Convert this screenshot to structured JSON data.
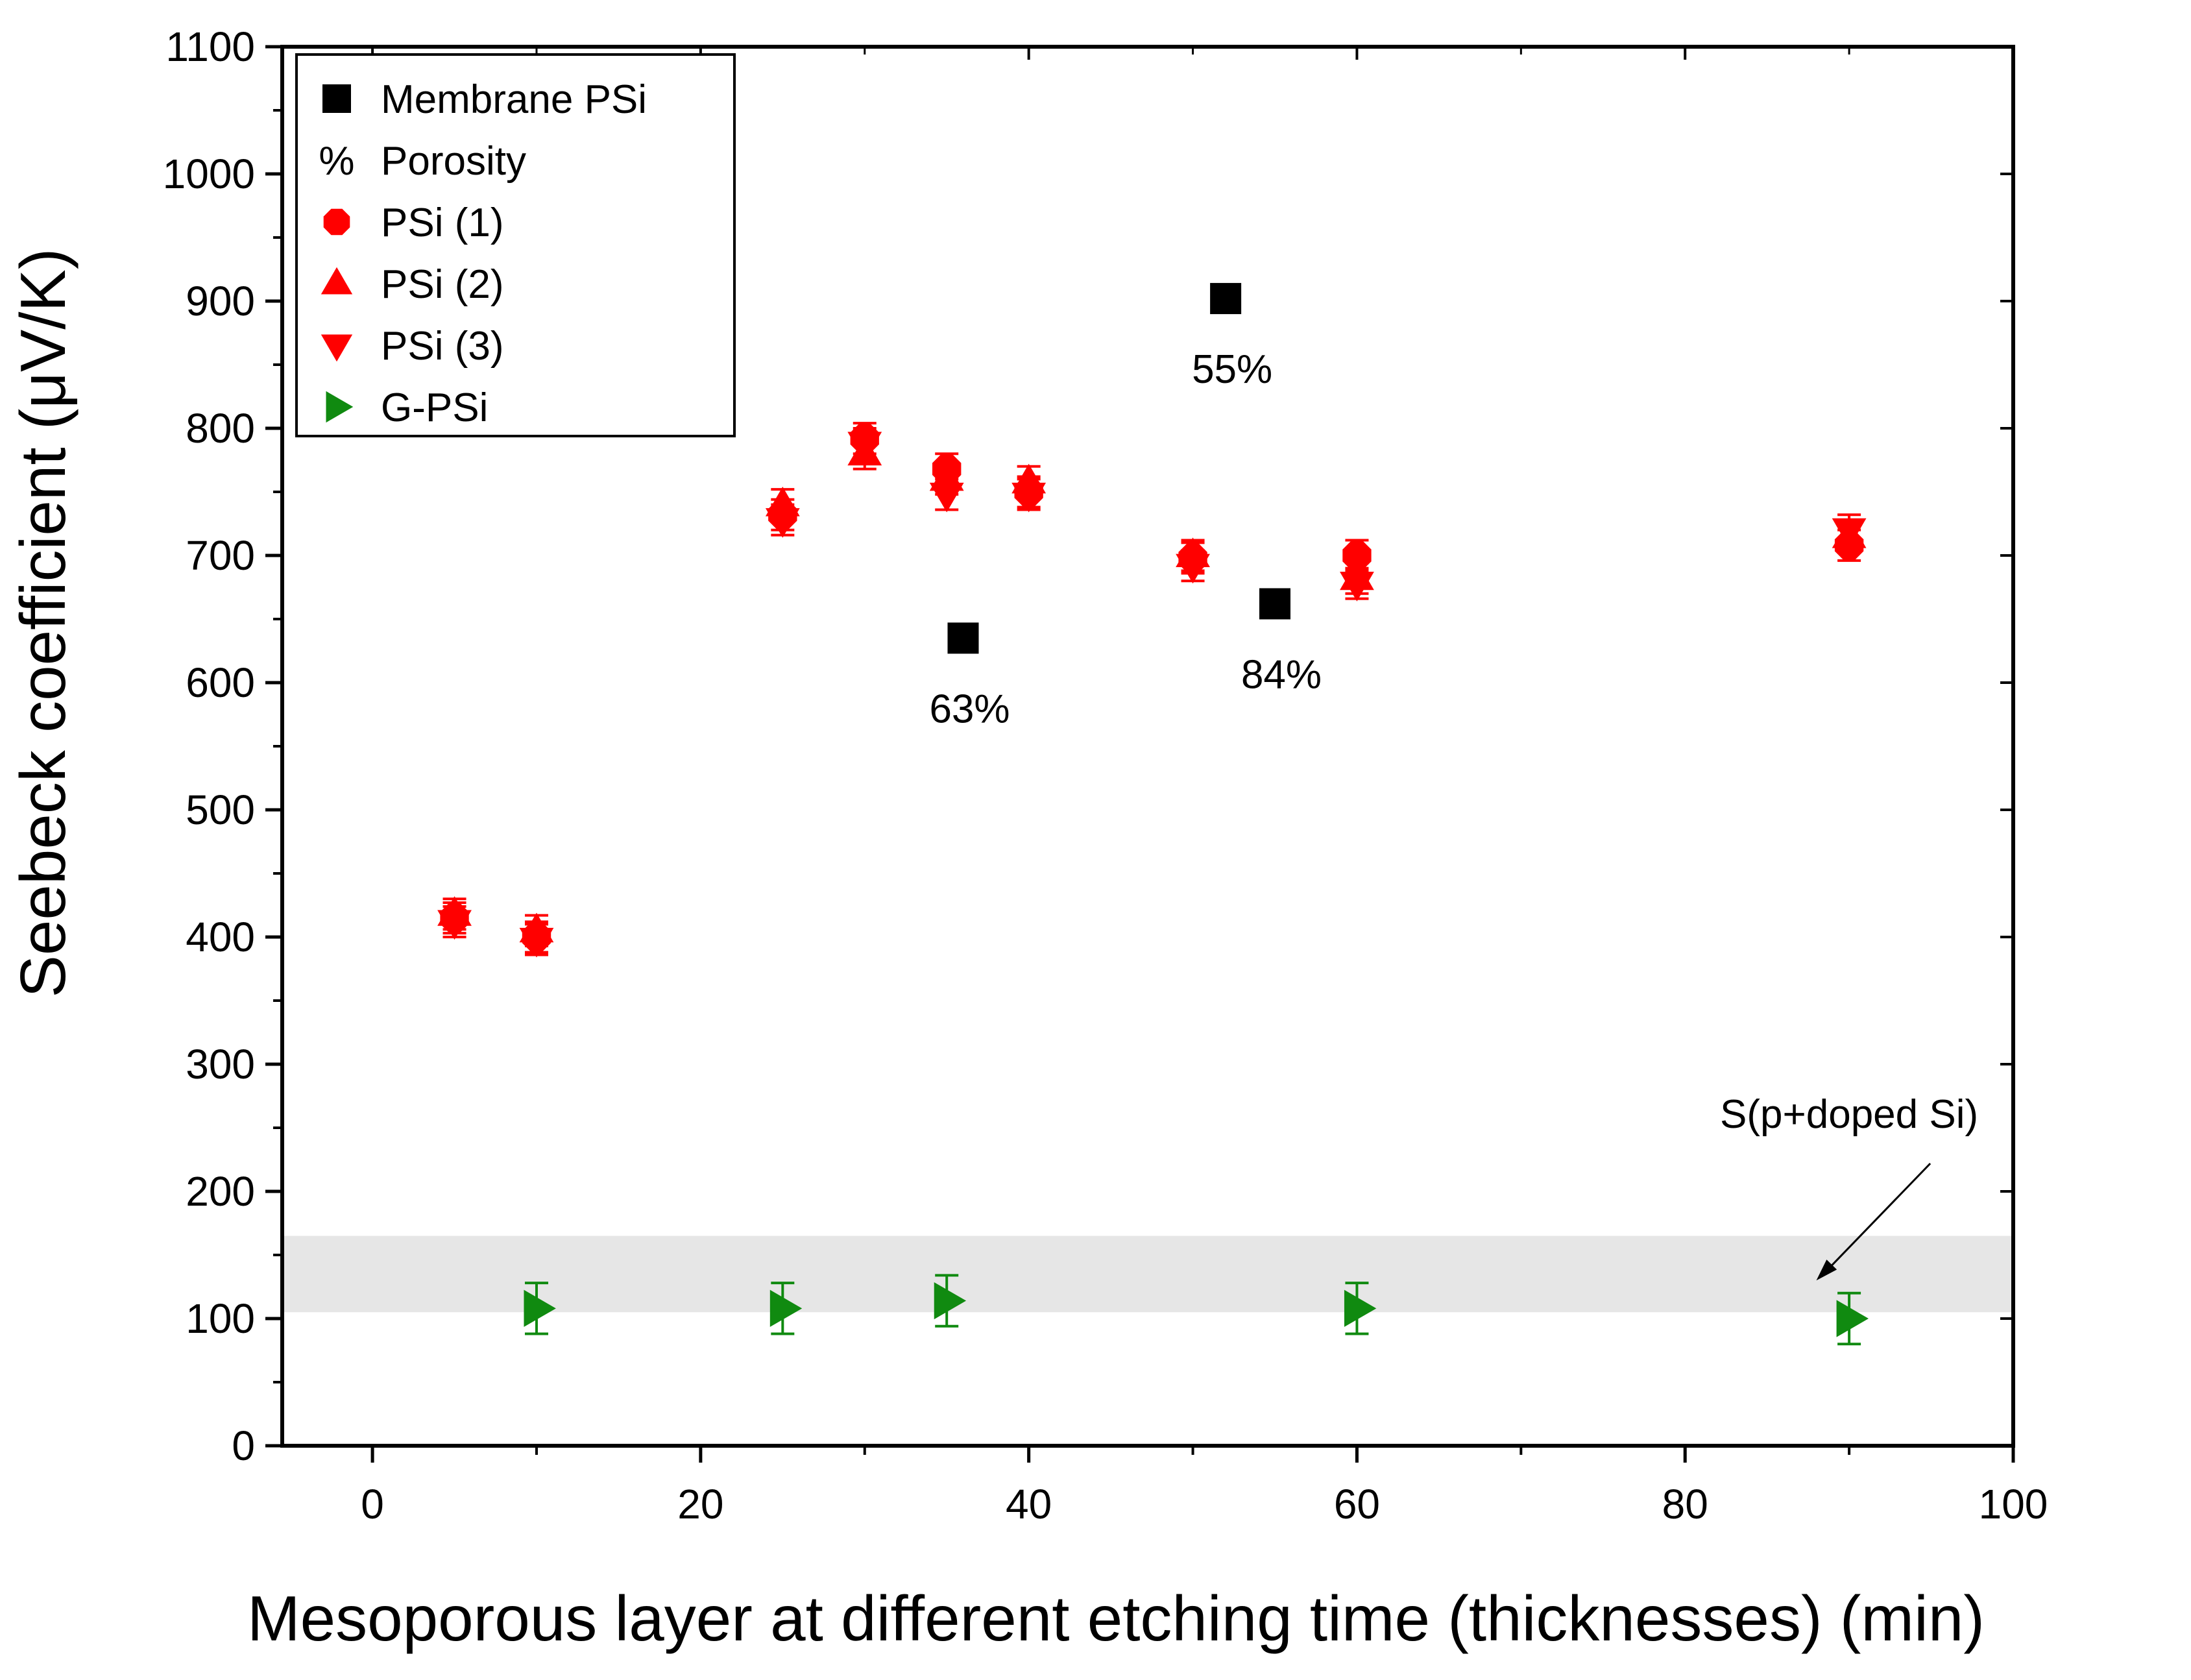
{
  "chart_data": {
    "type": "scatter",
    "title": "",
    "xlabel": "Mesoporous layer at different etching time (thicknesses) (min)",
    "ylabel": "Seebeck coefficient (μV/K)",
    "xlim": [
      -5.5,
      100
    ],
    "ylim": [
      0,
      1100
    ],
    "xticks": [
      0,
      20,
      40,
      60,
      80,
      100
    ],
    "yticks": [
      0,
      100,
      200,
      300,
      400,
      500,
      600,
      700,
      800,
      900,
      1000,
      1100
    ],
    "grid": false,
    "legend_position": "top-left",
    "colors": {
      "black": "#000000",
      "red": "#ff0000",
      "green": "#108a10",
      "band": "#e6e6e6",
      "frame": "#000000"
    },
    "band": {
      "label": "S(p+doped Si)",
      "y_range": [
        105,
        165
      ],
      "arrow_to": [
        88,
        130
      ],
      "label_at": [
        90,
        250
      ]
    },
    "legend": [
      {
        "symbol": "square",
        "label": "Membrane PSi"
      },
      {
        "symbol": "percent",
        "glyph": "%",
        "label": "Porosity"
      },
      {
        "symbol": "octagon",
        "label": "PSi (1)"
      },
      {
        "symbol": "triangle-up",
        "label": "PSi (2)"
      },
      {
        "symbol": "triangle-down",
        "label": "PSi (3)"
      },
      {
        "symbol": "triangle-right",
        "label": "G-PSi"
      }
    ],
    "series": [
      {
        "name": "Membrane PSi",
        "marker": "square",
        "color": "#000000",
        "points": [
          {
            "x": 36,
            "y": 635,
            "label": "63%"
          },
          {
            "x": 52,
            "y": 902,
            "label": "55%"
          },
          {
            "x": 55,
            "y": 662,
            "label": "84%"
          }
        ]
      },
      {
        "name": "PSi (1)",
        "marker": "octagon",
        "color": "#ff0000",
        "points": [
          {
            "x": 5,
            "y": 415,
            "err": 12
          },
          {
            "x": 10,
            "y": 400,
            "err": 12
          },
          {
            "x": 25,
            "y": 732,
            "err": 12
          },
          {
            "x": 30,
            "y": 792,
            "err": 12
          },
          {
            "x": 35,
            "y": 768,
            "err": 12
          },
          {
            "x": 40,
            "y": 750,
            "err": 12
          },
          {
            "x": 50,
            "y": 698,
            "err": 12
          },
          {
            "x": 60,
            "y": 700,
            "err": 12
          },
          {
            "x": 90,
            "y": 708,
            "err": 12
          }
        ]
      },
      {
        "name": "PSi (2)",
        "marker": "triangle-up",
        "color": "#ff0000",
        "points": [
          {
            "x": 5,
            "y": 418,
            "err": 12
          },
          {
            "x": 10,
            "y": 405,
            "err": 12
          },
          {
            "x": 25,
            "y": 740,
            "err": 12
          },
          {
            "x": 30,
            "y": 780,
            "err": 12
          },
          {
            "x": 35,
            "y": 760,
            "err": 12
          },
          {
            "x": 40,
            "y": 758,
            "err": 12
          },
          {
            "x": 50,
            "y": 700,
            "err": 12
          },
          {
            "x": 60,
            "y": 682,
            "err": 12
          },
          {
            "x": 90,
            "y": 715,
            "err": 12
          }
        ]
      },
      {
        "name": "PSi (3)",
        "marker": "triangle-down",
        "color": "#ff0000",
        "points": [
          {
            "x": 5,
            "y": 412,
            "err": 12
          },
          {
            "x": 10,
            "y": 398,
            "err": 12
          },
          {
            "x": 25,
            "y": 728,
            "err": 12
          },
          {
            "x": 30,
            "y": 788,
            "err": 12
          },
          {
            "x": 35,
            "y": 748,
            "err": 12
          },
          {
            "x": 40,
            "y": 748,
            "err": 12
          },
          {
            "x": 50,
            "y": 692,
            "err": 12
          },
          {
            "x": 60,
            "y": 678,
            "err": 12
          },
          {
            "x": 90,
            "y": 720,
            "err": 12
          }
        ]
      },
      {
        "name": "G-PSi",
        "marker": "triangle-right",
        "color": "#108a10",
        "points": [
          {
            "x": 10,
            "y": 108,
            "err": 20
          },
          {
            "x": 25,
            "y": 108,
            "err": 20
          },
          {
            "x": 35,
            "y": 114,
            "err": 20
          },
          {
            "x": 60,
            "y": 108,
            "err": 20
          },
          {
            "x": 90,
            "y": 100,
            "err": 20
          }
        ]
      }
    ]
  }
}
